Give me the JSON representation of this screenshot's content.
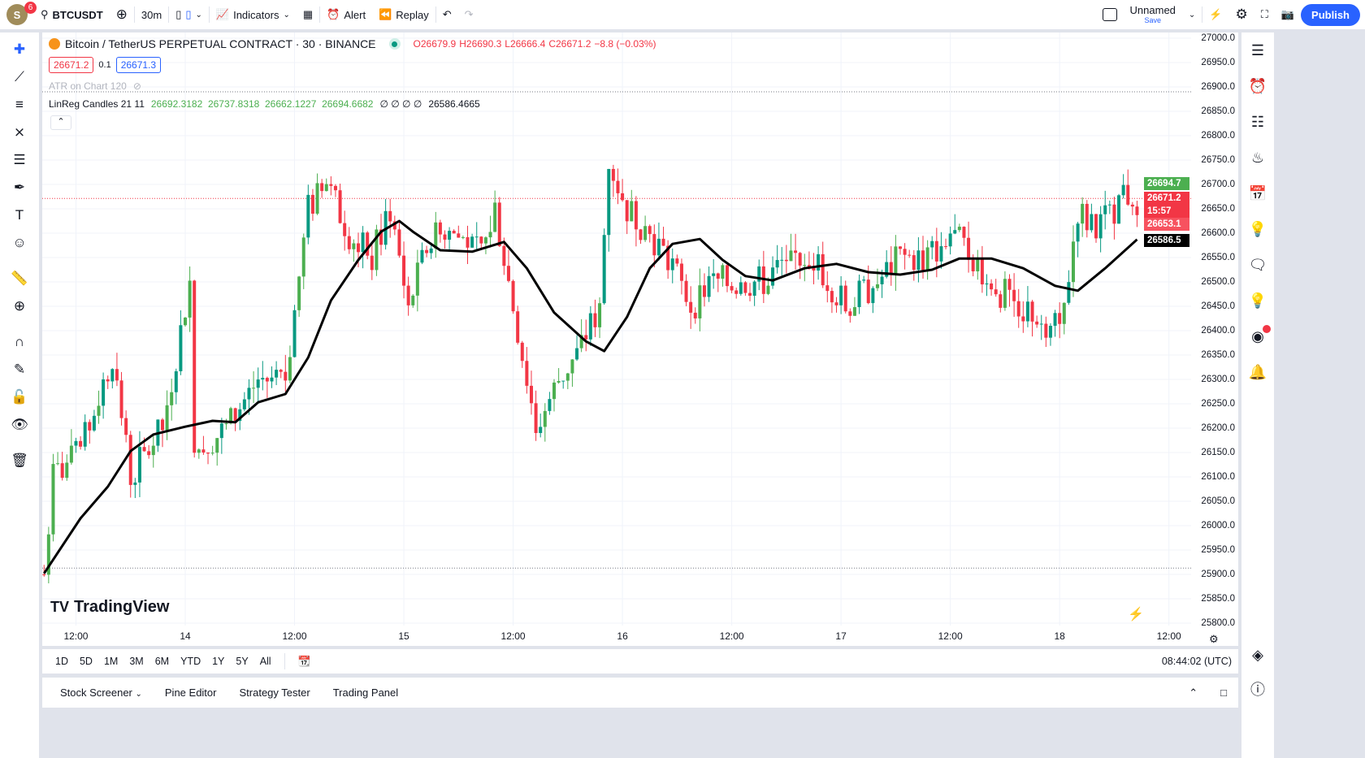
{
  "toolbar": {
    "avatar_letter": "S",
    "notifications": "6",
    "symbol": "BTCUSDT",
    "interval": "30m",
    "indicators": "Indicators",
    "alert": "Alert",
    "replay": "Replay",
    "layout_name": "Unnamed",
    "layout_save": "Save",
    "publish": "Publish"
  },
  "legend": {
    "title": "Bitcoin / TetherUS PERPETUAL CONTRACT · 30 · BINANCE",
    "o": "O26679.9",
    "h": "H26690.3",
    "l": "L26666.4",
    "c": "C26671.2",
    "chg": "−8.8 (−0.03%)",
    "bid": "26671.2",
    "spread": "0.1",
    "ask": "26671.3",
    "atr": "ATR on Chart 120",
    "linreg_name": "LinReg Candles 21 11",
    "linreg_vals": "26692.3182  26737.8318  26662.1227  26694.6682",
    "linreg_zeros": "∅ ∅ ∅ ∅",
    "linreg_last": "26586.4665"
  },
  "price_axis": [
    "27000.0",
    "26950.0",
    "26900.0",
    "26850.0",
    "26800.0",
    "26750.0",
    "26700.0",
    "26650.0",
    "26600.0",
    "26550.0",
    "26500.0",
    "26450.0",
    "26400.0",
    "26350.0",
    "26300.0",
    "26250.0",
    "26200.0",
    "26150.0",
    "26100.0",
    "26050.0",
    "26000.0",
    "25950.0",
    "25900.0",
    "25850.0",
    "25800.0"
  ],
  "price_tags": {
    "high": "26694.7",
    "last": "26671.2",
    "countdown": "15:57",
    "low": "26653.1",
    "linreg": "26586.5"
  },
  "time_axis": [
    {
      "t": "13 12:00",
      "label": "12:00"
    },
    {
      "t": "14 00:00",
      "label": "14"
    },
    {
      "t": "14 12:00",
      "label": "12:00"
    },
    {
      "t": "15 00:00",
      "label": "15"
    },
    {
      "t": "15 12:00",
      "label": "12:00"
    },
    {
      "t": "16 00:00",
      "label": "16"
    },
    {
      "t": "16 12:00",
      "label": "12:00"
    },
    {
      "t": "17 00:00",
      "label": "17"
    },
    {
      "t": "17 12:00",
      "label": "12:00"
    },
    {
      "t": "18 00:00",
      "label": "18"
    },
    {
      "t": "18 12:00",
      "label": "12:00"
    }
  ],
  "watermark": "TradingView",
  "ranges": [
    "1D",
    "5D",
    "1M",
    "3M",
    "6M",
    "YTD",
    "1Y",
    "5Y",
    "All"
  ],
  "clock": "08:44:02 (UTC)",
  "bottom_tabs": [
    "Stock Screener",
    "Pine Editor",
    "Strategy Tester",
    "Trading Panel"
  ],
  "colors": {
    "up": "#089981",
    "down": "#f23645",
    "accent": "#2962ff",
    "linreg": "#000000"
  },
  "chart_data": {
    "type": "candlestick",
    "ylim": [
      25800,
      27000
    ],
    "price_path": [
      [
        "13 08:30",
        25900
      ],
      [
        "13 09:30",
        26100
      ],
      [
        "13 12:30",
        26150
      ],
      [
        "13 16:00",
        26350
      ],
      [
        "13 18:00",
        26100
      ],
      [
        "13 21:30",
        26200
      ],
      [
        "14 00:30",
        26500
      ],
      [
        "14 01:00",
        26150
      ],
      [
        "14 04:30",
        26200
      ],
      [
        "14 08:00",
        26300
      ],
      [
        "14 11:00",
        26300
      ],
      [
        "14 13:30",
        26650
      ],
      [
        "14 15:30",
        26700
      ],
      [
        "14 18:00",
        26600
      ],
      [
        "14 20:30",
        26550
      ],
      [
        "14 22:30",
        26650
      ],
      [
        "15 00:30",
        26450
      ],
      [
        "15 03:00",
        26600
      ],
      [
        "15 05:30",
        26600
      ],
      [
        "15 08:30",
        26550
      ],
      [
        "15 10:00",
        26650
      ],
      [
        "15 12:00",
        26450
      ],
      [
        "15 14:30",
        26200
      ],
      [
        "15 17:00",
        26300
      ],
      [
        "15 19:00",
        26350
      ],
      [
        "15 21:30",
        26450
      ],
      [
        "15 22:30",
        26750
      ],
      [
        "16 00:30",
        26650
      ],
      [
        "16 03:00",
        26600
      ],
      [
        "16 05:00",
        26550
      ],
      [
        "16 07:30",
        26450
      ],
      [
        "16 10:00",
        26500
      ],
      [
        "16 13:00",
        26500
      ],
      [
        "16 15:30",
        26500
      ],
      [
        "16 18:00",
        26550
      ],
      [
        "16 21:00",
        26550
      ],
      [
        "17 00:30",
        26450
      ],
      [
        "17 04:00",
        26500
      ],
      [
        "17 06:30",
        26550
      ],
      [
        "17 09:30",
        26550
      ],
      [
        "17 12:00",
        26600
      ],
      [
        "17 14:30",
        26550
      ],
      [
        "17 17:30",
        26480
      ],
      [
        "17 20:00",
        26450
      ],
      [
        "17 22:30",
        26420
      ],
      [
        "18 00:30",
        26450
      ],
      [
        "18 02:00",
        26650
      ],
      [
        "18 04:00",
        26600
      ],
      [
        "18 07:00",
        26680
      ],
      [
        "18 08:30",
        26671.2
      ]
    ],
    "linreg_line": [
      [
        "13 08:30",
        25902
      ],
      [
        "13 12:30",
        26015
      ],
      [
        "13 15:30",
        26080
      ],
      [
        "13 18:00",
        26153
      ],
      [
        "13 20:30",
        26187
      ],
      [
        "14 00:00",
        26203
      ],
      [
        "14 03:00",
        26215
      ],
      [
        "14 05:30",
        26212
      ],
      [
        "14 08:00",
        26253
      ],
      [
        "14 11:00",
        26270
      ],
      [
        "14 13:30",
        26345
      ],
      [
        "14 16:00",
        26462
      ],
      [
        "14 19:00",
        26545
      ],
      [
        "14 21:30",
        26603
      ],
      [
        "14 23:30",
        26625
      ],
      [
        "15 01:00",
        26603
      ],
      [
        "15 04:00",
        26565
      ],
      [
        "15 07:30",
        26562
      ],
      [
        "15 11:00",
        26582
      ],
      [
        "15 13:30",
        26528
      ],
      [
        "15 16:30",
        26437
      ],
      [
        "15 20:00",
        26378
      ],
      [
        "15 22:00",
        26358
      ],
      [
        "16 00:30",
        26428
      ],
      [
        "16 03:00",
        26528
      ],
      [
        "16 05:30",
        26578
      ],
      [
        "16 08:30",
        26588
      ],
      [
        "16 11:00",
        26545
      ],
      [
        "16 13:30",
        26512
      ],
      [
        "16 16:30",
        26503
      ],
      [
        "16 20:00",
        26528
      ],
      [
        "16 23:30",
        26537
      ],
      [
        "17 03:00",
        26520
      ],
      [
        "17 06:30",
        26515
      ],
      [
        "17 10:00",
        26525
      ],
      [
        "17 13:00",
        26548
      ],
      [
        "17 16:30",
        26548
      ],
      [
        "17 20:00",
        26528
      ],
      [
        "17 23:30",
        26492
      ],
      [
        "18 02:00",
        26482
      ],
      [
        "18 05:00",
        26528
      ],
      [
        "18 08:30",
        26587
      ]
    ],
    "dotted_levels": [
      26890,
      25913
    ]
  }
}
